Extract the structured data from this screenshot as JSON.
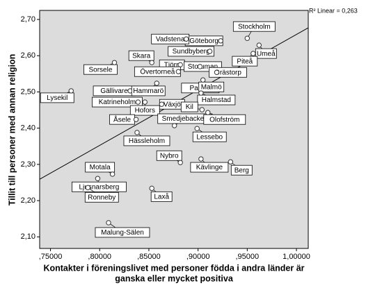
{
  "chart_data": {
    "type": "scatter",
    "ylabel": "Tillit till personer med annan religion",
    "xlabel": [
      "Kontakter i föreningslivet med personer födda i andra länder är",
      "ganska eller mycket positiva"
    ],
    "annotation": "R² Linear = 0,263",
    "xlim": [
      0.739,
      1.012
    ],
    "ylim": [
      2.068,
      2.725
    ],
    "xticks": [
      {
        "value": 0.75,
        "label": ",75000"
      },
      {
        "value": 0.8,
        "label": ",80000"
      },
      {
        "value": 0.85,
        "label": ",85000"
      },
      {
        "value": 0.9,
        "label": ",90000"
      },
      {
        "value": 0.95,
        "label": ",95000"
      },
      {
        "value": 1.0,
        "label": "1,00000"
      }
    ],
    "yticks": [
      {
        "value": 2.1,
        "label": "2,10"
      },
      {
        "value": 2.2,
        "label": "2,20"
      },
      {
        "value": 2.3,
        "label": "2,30"
      },
      {
        "value": 2.4,
        "label": "2,40"
      },
      {
        "value": 2.5,
        "label": "2,50"
      },
      {
        "value": 2.6,
        "label": "2,60"
      },
      {
        "value": 2.7,
        "label": "2,70"
      }
    ],
    "labels": [
      "Stockholm",
      "Umeå",
      "Piteå",
      "Göteborg",
      "Vadstena",
      "Sundbyberg",
      "Skara",
      "Tjörn",
      "Storuman",
      "Sorsele",
      "Övertorneå",
      "Grästorp",
      "Lysekil",
      "Gällivare",
      "Hammarö",
      "Partille",
      "Malmö",
      "Halmstad",
      "Katrineholm",
      "Hofors",
      "Växjö",
      "Kil",
      "Smedjebacken",
      "Olofström",
      "Lessebo",
      "Åsele",
      "Hässleholm",
      "Nybro",
      "Kävlinge",
      "Berg",
      "Motala",
      "Ljusnarsberg",
      "Ronneby",
      "Laxå",
      "Malung-Sälen"
    ],
    "x": [
      0.95,
      0.962,
      0.956,
      0.923,
      0.888,
      0.912,
      0.853,
      0.882,
      0.902,
      0.815,
      0.88,
      0.919,
      0.771,
      0.831,
      0.858,
      0.915,
      0.905,
      0.903,
      0.839,
      0.846,
      0.863,
      0.904,
      0.876,
      0.91,
      0.899,
      0.837,
      0.838,
      0.882,
      0.903,
      0.933,
      0.813,
      0.798,
      0.788,
      0.853,
      0.809
    ],
    "values": [
      2.648,
      2.629,
      2.606,
      2.641,
      2.646,
      2.612,
      2.581,
      2.575,
      2.57,
      2.581,
      2.556,
      2.554,
      2.503,
      2.503,
      2.524,
      2.507,
      2.533,
      2.497,
      2.472,
      2.472,
      2.466,
      2.451,
      2.407,
      2.443,
      2.399,
      2.424,
      2.388,
      2.305,
      2.315,
      2.307,
      2.273,
      2.261,
      2.236,
      2.234,
      2.139
    ],
    "fit_line": {
      "x": [
        0.739,
        1.012
      ],
      "y": [
        2.259,
        2.677
      ]
    },
    "plot_background": "#dcdcdc",
    "marker_color": "#ffffff"
  }
}
